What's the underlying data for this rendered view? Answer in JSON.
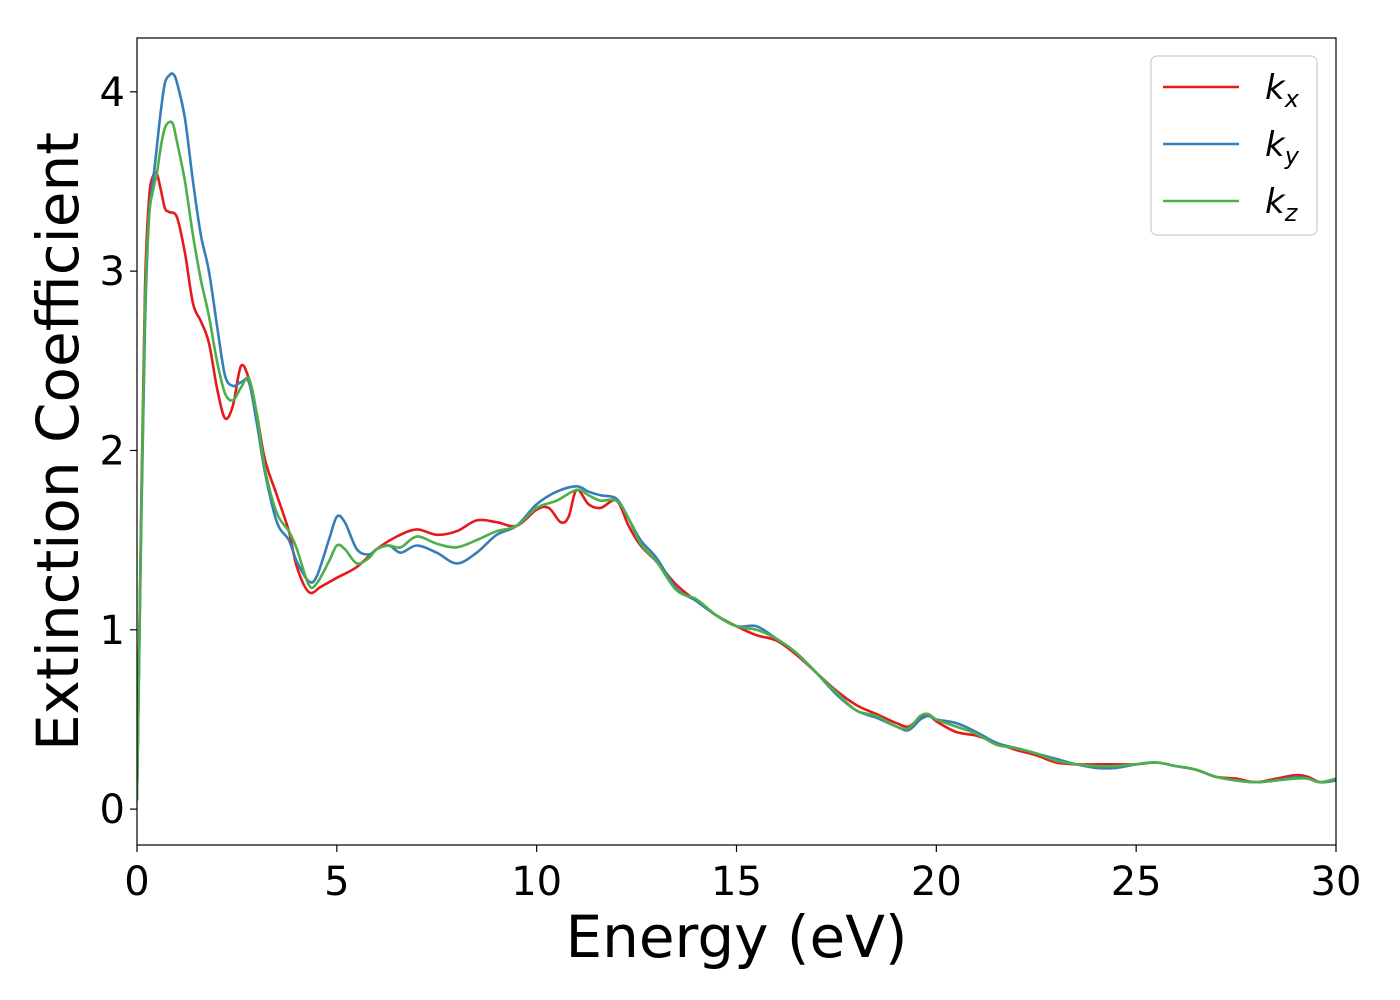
{
  "chart_data": {
    "type": "line",
    "xlabel": "Energy (eV)",
    "ylabel": "Extinction Coefficient",
    "xlim": [
      0,
      30
    ],
    "ylim": [
      -0.2,
      4.3
    ],
    "xticks": [
      0,
      5,
      10,
      15,
      20,
      25,
      30
    ],
    "yticks": [
      0,
      1,
      2,
      3,
      4
    ],
    "grid": false,
    "legend_position": "top-right",
    "series": [
      {
        "name": "k",
        "subscript": "x",
        "color": "#e41a1c",
        "x": [
          0,
          0.1,
          0.2,
          0.3,
          0.4,
          0.5,
          0.6,
          0.7,
          0.8,
          1.0,
          1.2,
          1.4,
          1.6,
          1.8,
          2.0,
          2.2,
          2.4,
          2.6,
          2.8,
          3.0,
          3.2,
          3.5,
          3.8,
          4.0,
          4.3,
          4.6,
          5.0,
          5.5,
          6.0,
          6.5,
          7.0,
          7.5,
          8.0,
          8.5,
          9.0,
          9.5,
          10.0,
          10.3,
          10.6,
          10.8,
          11.0,
          11.3,
          11.6,
          12.0,
          12.3,
          12.6,
          13.0,
          13.5,
          14.0,
          14.5,
          15.0,
          15.5,
          16.0,
          16.5,
          17.0,
          17.5,
          18.0,
          18.5,
          19.0,
          19.3,
          19.6,
          19.8,
          20.0,
          20.5,
          21.0,
          21.5,
          22.0,
          22.5,
          23.0,
          23.5,
          24.0,
          24.5,
          25.0,
          25.5,
          26.0,
          26.5,
          27.0,
          27.5,
          28.0,
          28.5,
          29.0,
          29.3,
          29.6,
          30.0
        ],
        "values": [
          0.05,
          1.6,
          2.9,
          3.4,
          3.53,
          3.54,
          3.45,
          3.35,
          3.33,
          3.3,
          3.1,
          2.82,
          2.72,
          2.6,
          2.35,
          2.18,
          2.25,
          2.47,
          2.4,
          2.2,
          1.95,
          1.75,
          1.55,
          1.35,
          1.21,
          1.24,
          1.29,
          1.35,
          1.45,
          1.52,
          1.56,
          1.53,
          1.55,
          1.61,
          1.6,
          1.58,
          1.67,
          1.68,
          1.6,
          1.63,
          1.78,
          1.7,
          1.68,
          1.72,
          1.58,
          1.47,
          1.38,
          1.25,
          1.16,
          1.08,
          1.02,
          0.97,
          0.94,
          0.86,
          0.76,
          0.66,
          0.58,
          0.53,
          0.48,
          0.46,
          0.51,
          0.53,
          0.49,
          0.43,
          0.41,
          0.37,
          0.33,
          0.3,
          0.26,
          0.25,
          0.25,
          0.25,
          0.25,
          0.26,
          0.24,
          0.22,
          0.18,
          0.17,
          0.15,
          0.17,
          0.19,
          0.18,
          0.15,
          0.16
        ]
      },
      {
        "name": "k",
        "subscript": "y",
        "color": "#377eb8",
        "x": [
          0,
          0.1,
          0.2,
          0.3,
          0.4,
          0.5,
          0.6,
          0.7,
          0.8,
          0.9,
          1.0,
          1.2,
          1.4,
          1.6,
          1.8,
          2.0,
          2.2,
          2.4,
          2.6,
          2.8,
          3.0,
          3.2,
          3.5,
          3.8,
          4.0,
          4.3,
          4.5,
          4.8,
          5.0,
          5.2,
          5.5,
          5.8,
          6.0,
          6.3,
          6.6,
          7.0,
          7.5,
          8.0,
          8.5,
          9.0,
          9.5,
          10.0,
          10.5,
          11.0,
          11.3,
          11.6,
          12.0,
          12.3,
          12.6,
          13.0,
          13.5,
          14.0,
          14.5,
          15.0,
          15.5,
          16.0,
          16.5,
          17.0,
          17.5,
          18.0,
          18.5,
          19.0,
          19.3,
          19.6,
          19.8,
          20.0,
          20.5,
          21.0,
          21.5,
          22.0,
          22.5,
          23.0,
          23.5,
          24.0,
          24.5,
          25.0,
          25.5,
          26.0,
          26.5,
          27.0,
          27.5,
          28.0,
          28.5,
          29.0,
          29.3,
          29.6,
          30.0
        ],
        "values": [
          0.05,
          1.5,
          2.7,
          3.3,
          3.5,
          3.7,
          3.9,
          4.05,
          4.09,
          4.1,
          4.05,
          3.85,
          3.5,
          3.2,
          3.0,
          2.7,
          2.42,
          2.36,
          2.38,
          2.38,
          2.15,
          1.88,
          1.6,
          1.5,
          1.38,
          1.27,
          1.3,
          1.5,
          1.63,
          1.6,
          1.45,
          1.42,
          1.45,
          1.47,
          1.43,
          1.47,
          1.43,
          1.37,
          1.43,
          1.53,
          1.58,
          1.7,
          1.77,
          1.8,
          1.77,
          1.75,
          1.73,
          1.62,
          1.5,
          1.4,
          1.23,
          1.16,
          1.08,
          1.02,
          1.02,
          0.95,
          0.87,
          0.76,
          0.64,
          0.55,
          0.51,
          0.46,
          0.44,
          0.5,
          0.52,
          0.5,
          0.48,
          0.43,
          0.37,
          0.34,
          0.31,
          0.28,
          0.25,
          0.23,
          0.23,
          0.25,
          0.26,
          0.24,
          0.22,
          0.18,
          0.16,
          0.15,
          0.16,
          0.18,
          0.17,
          0.15,
          0.16
        ]
      },
      {
        "name": "k",
        "subscript": "z",
        "color": "#4daf4a",
        "x": [
          0,
          0.1,
          0.2,
          0.3,
          0.4,
          0.5,
          0.6,
          0.7,
          0.8,
          0.9,
          1.0,
          1.2,
          1.4,
          1.6,
          1.8,
          2.0,
          2.2,
          2.4,
          2.6,
          2.8,
          3.0,
          3.2,
          3.5,
          3.8,
          4.0,
          4.3,
          4.5,
          4.8,
          5.0,
          5.2,
          5.5,
          5.8,
          6.0,
          6.3,
          6.6,
          7.0,
          7.5,
          8.0,
          8.5,
          9.0,
          9.5,
          10.0,
          10.5,
          11.0,
          11.3,
          11.6,
          12.0,
          12.3,
          12.6,
          13.0,
          13.5,
          14.0,
          14.5,
          15.0,
          15.5,
          16.0,
          16.5,
          17.0,
          17.5,
          18.0,
          18.5,
          19.0,
          19.3,
          19.6,
          19.8,
          20.0,
          20.5,
          21.0,
          21.5,
          22.0,
          22.5,
          23.0,
          23.5,
          24.0,
          24.5,
          25.0,
          25.5,
          26.0,
          26.5,
          27.0,
          27.5,
          28.0,
          28.5,
          29.0,
          29.3,
          29.6,
          30.0
        ],
        "values": [
          0.05,
          1.55,
          2.8,
          3.3,
          3.45,
          3.55,
          3.7,
          3.8,
          3.83,
          3.82,
          3.72,
          3.5,
          3.2,
          2.95,
          2.75,
          2.5,
          2.32,
          2.28,
          2.35,
          2.4,
          2.2,
          1.9,
          1.65,
          1.55,
          1.45,
          1.25,
          1.26,
          1.38,
          1.47,
          1.45,
          1.37,
          1.4,
          1.45,
          1.47,
          1.46,
          1.52,
          1.48,
          1.46,
          1.5,
          1.55,
          1.58,
          1.68,
          1.72,
          1.78,
          1.75,
          1.72,
          1.72,
          1.62,
          1.48,
          1.38,
          1.22,
          1.17,
          1.08,
          1.02,
          1.0,
          0.95,
          0.87,
          0.76,
          0.65,
          0.55,
          0.52,
          0.46,
          0.45,
          0.52,
          0.53,
          0.5,
          0.46,
          0.42,
          0.36,
          0.34,
          0.31,
          0.27,
          0.25,
          0.24,
          0.24,
          0.25,
          0.26,
          0.24,
          0.22,
          0.18,
          0.16,
          0.15,
          0.16,
          0.17,
          0.17,
          0.15,
          0.17
        ]
      }
    ]
  }
}
